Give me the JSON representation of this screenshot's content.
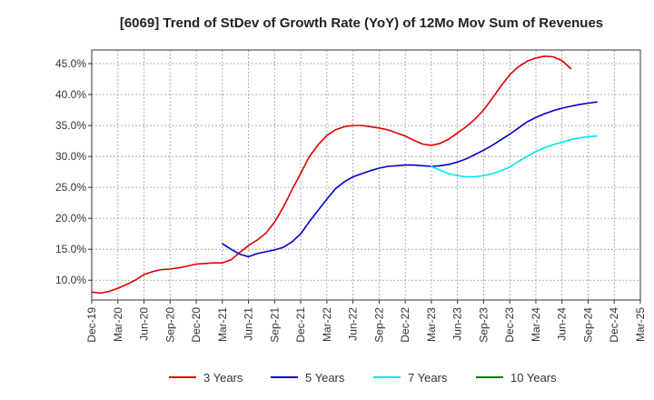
{
  "chart_data": {
    "type": "line",
    "title": "[6069]  Trend of StDev of Growth Rate (YoY) of 12Mo Mov Sum of Revenues",
    "xlabel": "",
    "ylabel": "",
    "x_tick_labels": [
      "Dec-19",
      "Mar-20",
      "Jun-20",
      "Sep-20",
      "Dec-20",
      "Mar-21",
      "Jun-21",
      "Sep-21",
      "Dec-21",
      "Mar-22",
      "Jun-22",
      "Sep-22",
      "Dec-22",
      "Mar-23",
      "Jun-23",
      "Sep-23",
      "Dec-23",
      "Mar-24",
      "Jun-24",
      "Sep-24",
      "Dec-24",
      "Mar-25"
    ],
    "y_tick_labels": [
      "10.0%",
      "15.0%",
      "20.0%",
      "25.0%",
      "30.0%",
      "35.0%",
      "40.0%",
      "45.0%"
    ],
    "y_ticks": [
      10,
      15,
      20,
      25,
      30,
      35,
      40,
      45
    ],
    "ylim": [
      6.8,
      47.2
    ],
    "xlim": [
      0,
      63
    ],
    "grid": true,
    "legend_position": "bottom",
    "series": [
      {
        "name": "3 Years",
        "color": "#dd0000",
        "start": 0,
        "values": [
          8.1,
          7.9,
          8.2,
          8.7,
          9.3,
          10.0,
          10.9,
          11.4,
          11.7,
          11.8,
          12.0,
          12.3,
          12.6,
          12.7,
          12.8,
          12.8,
          13.3,
          14.5,
          15.6,
          16.5,
          17.6,
          19.4,
          21.8,
          24.6,
          27.3,
          30.0,
          31.9,
          33.4,
          34.3,
          34.8,
          35.0,
          35.0,
          34.8,
          34.6,
          34.3,
          33.8,
          33.3,
          32.6,
          32.0,
          31.8,
          32.1,
          32.8,
          33.8,
          34.8,
          36.0,
          37.5,
          39.4,
          41.4,
          43.2,
          44.5,
          45.4,
          45.9,
          46.2,
          46.1,
          45.5,
          44.2
        ]
      },
      {
        "name": "5 Years",
        "color": "#0000cc",
        "start": 15,
        "values": [
          15.9,
          15.0,
          14.2,
          13.8,
          14.3,
          14.6,
          14.9,
          15.3,
          16.2,
          17.5,
          19.5,
          21.3,
          23.1,
          24.8,
          25.9,
          26.7,
          27.2,
          27.7,
          28.1,
          28.4,
          28.5,
          28.6,
          28.6,
          28.5,
          28.4,
          28.5,
          28.7,
          29.1,
          29.6,
          30.3,
          31.0,
          31.8,
          32.7,
          33.6,
          34.6,
          35.6,
          36.3,
          36.9,
          37.4,
          37.8,
          38.1,
          38.4,
          38.6,
          38.8
        ]
      },
      {
        "name": "7 Years",
        "color": "#00e5ee",
        "start": 39,
        "values": [
          28.4,
          27.8,
          27.2,
          26.9,
          26.7,
          26.7,
          26.9,
          27.2,
          27.7,
          28.3,
          29.2,
          30.0,
          30.8,
          31.4,
          31.9,
          32.3,
          32.7,
          33.0,
          33.2,
          33.3
        ]
      },
      {
        "name": "10 Years",
        "color": "#008000",
        "start": null,
        "values": []
      }
    ]
  }
}
